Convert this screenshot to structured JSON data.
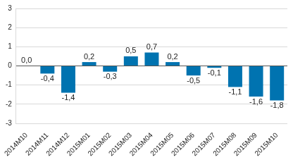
{
  "chart_data": {
    "type": "bar",
    "categories": [
      "2014M10",
      "2014M11",
      "2014M12",
      "2015M01",
      "2015M02",
      "2015M03",
      "2015M04",
      "2015M05",
      "2015M06",
      "2015M07",
      "2015M08",
      "2015M09",
      "2015M10"
    ],
    "values": [
      0.0,
      -0.4,
      -1.4,
      0.2,
      -0.3,
      0.5,
      0.7,
      0.2,
      -0.5,
      -0.1,
      -1.1,
      -1.6,
      -1.8
    ],
    "value_labels": [
      "0,0",
      "-0,4",
      "-1,4",
      "0,2",
      "-0,3",
      "0,5",
      "0,7",
      "0,2",
      "-0,5",
      "-0,1",
      "-1,1",
      "-1,6",
      "-1,8"
    ],
    "color": "#0073b0",
    "ylim": [
      -3,
      3
    ],
    "yticks": [
      -3,
      -2,
      -1,
      0,
      1,
      2,
      3
    ],
    "grid": true,
    "data_labels": true
  }
}
